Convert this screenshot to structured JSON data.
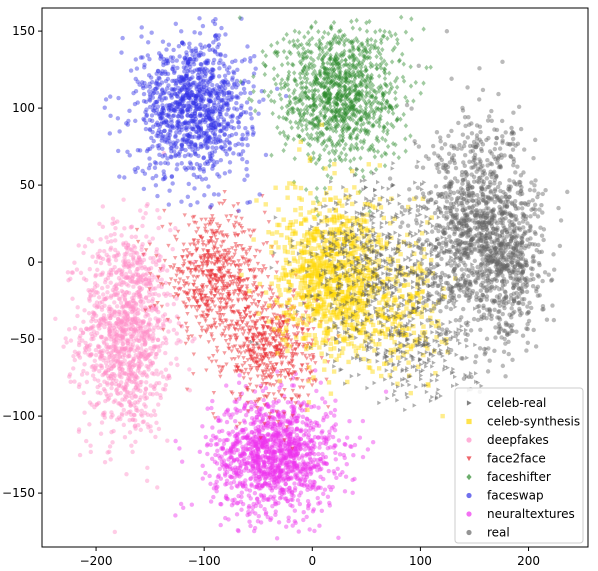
{
  "chart_data": {
    "type": "scatter",
    "title": "",
    "xlabel": "",
    "ylabel": "",
    "xlim": [
      -250,
      255
    ],
    "ylim": [
      -185,
      165
    ],
    "xticks": [
      -200,
      -100,
      0,
      100,
      200
    ],
    "yticks": [
      -150,
      -100,
      -50,
      0,
      50,
      100,
      150
    ],
    "grid": false,
    "legend_position": "bottom-right",
    "series": [
      {
        "name": "celeb-real",
        "color": "#4d4d4d",
        "marker": "triangle-right",
        "clusters": [
          {
            "cx": 65,
            "cy": -5,
            "sx": 50,
            "sy": 40,
            "n": 700
          },
          {
            "cx": 100,
            "cy": -60,
            "sx": 35,
            "sy": 20,
            "n": 180
          }
        ]
      },
      {
        "name": "celeb-synthesis",
        "color": "#ffd700",
        "marker": "square",
        "clusters": [
          {
            "cx": 20,
            "cy": -10,
            "sx": 35,
            "sy": 35,
            "n": 1000
          },
          {
            "cx": 85,
            "cy": -30,
            "sx": 25,
            "sy": 30,
            "n": 200
          }
        ]
      },
      {
        "name": "deepfakes",
        "color": "#ff8fc8",
        "marker": "circle",
        "clusters": [
          {
            "cx": -172,
            "cy": -45,
            "sx": 28,
            "sy": 45,
            "n": 1200
          }
        ]
      },
      {
        "name": "face2face",
        "color": "#e8232b",
        "marker": "triangle-down",
        "clusters": [
          {
            "cx": -90,
            "cy": -10,
            "sx": 32,
            "sy": 25,
            "n": 650
          },
          {
            "cx": -40,
            "cy": -55,
            "sx": 28,
            "sy": 25,
            "n": 600
          }
        ]
      },
      {
        "name": "faceshifter",
        "color": "#2e8b2e",
        "marker": "diamond",
        "clusters": [
          {
            "cx": 25,
            "cy": 110,
            "sx": 38,
            "sy": 30,
            "n": 1200
          }
        ]
      },
      {
        "name": "faceswap",
        "color": "#3333e6",
        "marker": "circle",
        "clusters": [
          {
            "cx": -110,
            "cy": 100,
            "sx": 35,
            "sy": 30,
            "n": 1100
          }
        ]
      },
      {
        "name": "neuraltextures",
        "color": "#ee33ee",
        "marker": "circle",
        "clusters": [
          {
            "cx": -35,
            "cy": -125,
            "sx": 38,
            "sy": 25,
            "n": 1300
          }
        ]
      },
      {
        "name": "real",
        "color": "#666666",
        "marker": "circle",
        "clusters": [
          {
            "cx": 155,
            "cy": 20,
            "sx": 35,
            "sy": 45,
            "n": 1200
          },
          {
            "cx": 185,
            "cy": -5,
            "sx": 20,
            "sy": 30,
            "n": 300
          }
        ]
      }
    ]
  }
}
